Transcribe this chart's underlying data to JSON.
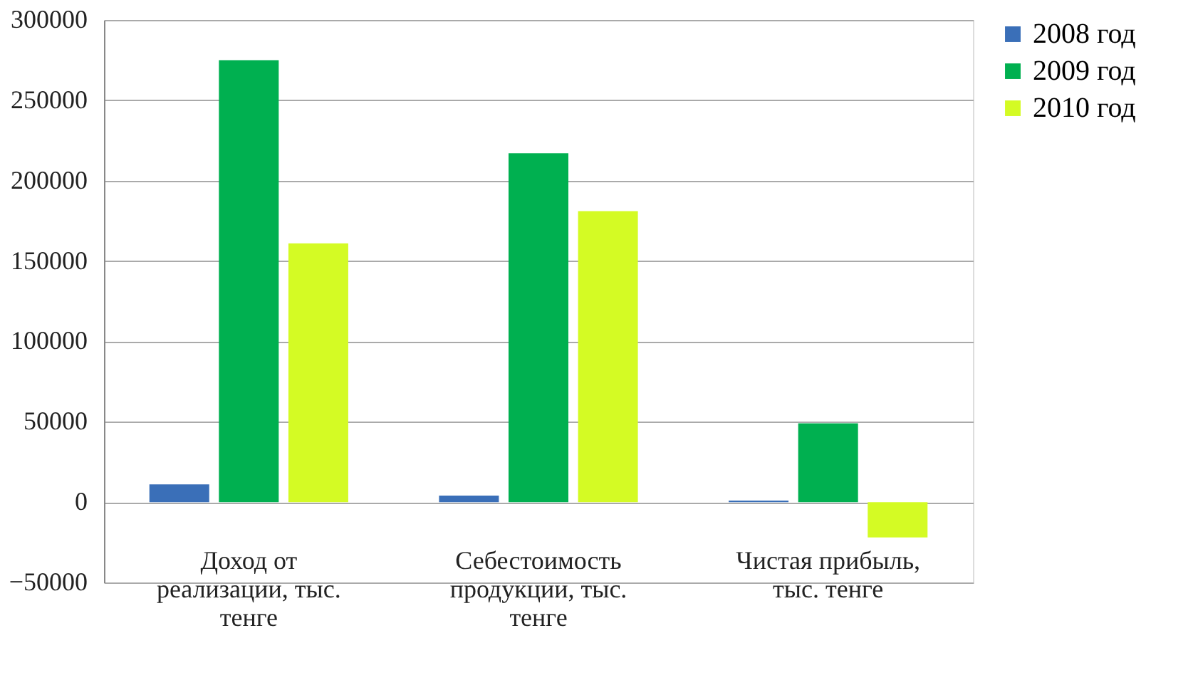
{
  "chart_data": {
    "type": "bar",
    "categories": [
      "Доход от реализации, тыс. тенге",
      "Себестоимость продукции, тыс. тенге",
      "Чистая прибыль, тыс. тенге"
    ],
    "series": [
      {
        "name": "2008 год",
        "color": "#3a6fb8",
        "values": [
          11000,
          4000,
          1000
        ]
      },
      {
        "name": "2009 год",
        "color": "#00b050",
        "values": [
          275000,
          217000,
          49000
        ]
      },
      {
        "name": "2010 год",
        "color": "#d4fb24",
        "values": [
          161000,
          181000,
          -22000
        ]
      }
    ],
    "ylim": [
      -50000,
      300000
    ],
    "yticks": [
      -50000,
      0,
      50000,
      100000,
      150000,
      200000,
      250000,
      300000
    ],
    "grid": "y",
    "legend": "right"
  }
}
